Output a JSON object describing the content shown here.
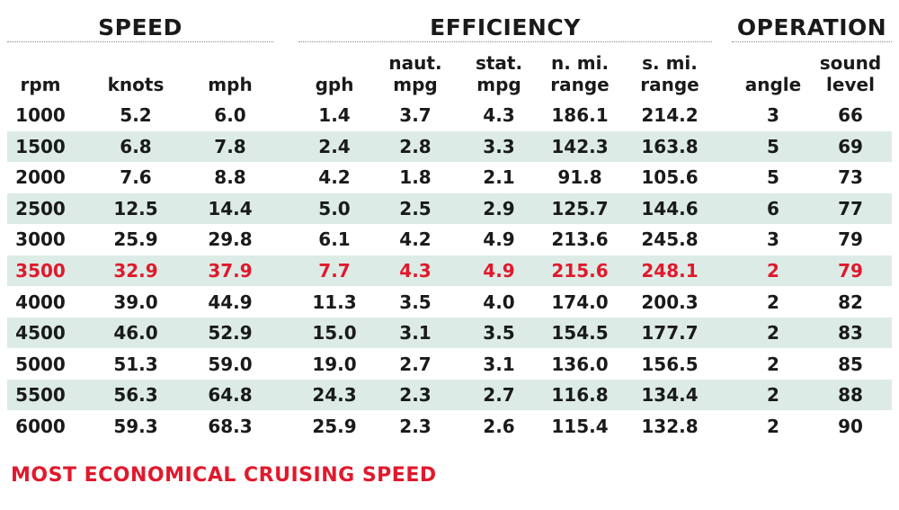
{
  "groups": {
    "speed": "SPEED",
    "efficiency": "EFFICIENCY",
    "operation": "OPERATION"
  },
  "headers": {
    "rpm": [
      "rpm"
    ],
    "knots": [
      "knots"
    ],
    "mph": [
      "mph"
    ],
    "gph": [
      "gph"
    ],
    "naut_mpg": [
      "naut.",
      "mpg"
    ],
    "stat_mpg": [
      "stat.",
      "mpg"
    ],
    "n_mi_range": [
      "n. mi.",
      "range"
    ],
    "s_mi_range": [
      "s. mi.",
      "range"
    ],
    "angle": [
      "angle"
    ],
    "sound_level": [
      "sound",
      "level"
    ]
  },
  "rows": [
    {
      "rpm": "1000",
      "knots": "5.2",
      "mph": "6.0",
      "gph": "1.4",
      "naut_mpg": "3.7",
      "stat_mpg": "4.3",
      "n_mi_range": "186.1",
      "s_mi_range": "214.2",
      "angle": "3",
      "sound_level": "66"
    },
    {
      "rpm": "1500",
      "knots": "6.8",
      "mph": "7.8",
      "gph": "2.4",
      "naut_mpg": "2.8",
      "stat_mpg": "3.3",
      "n_mi_range": "142.3",
      "s_mi_range": "163.8",
      "angle": "5",
      "sound_level": "69"
    },
    {
      "rpm": "2000",
      "knots": "7.6",
      "mph": "8.8",
      "gph": "4.2",
      "naut_mpg": "1.8",
      "stat_mpg": "2.1",
      "n_mi_range": "91.8",
      "s_mi_range": "105.6",
      "angle": "5",
      "sound_level": "73"
    },
    {
      "rpm": "2500",
      "knots": "12.5",
      "mph": "14.4",
      "gph": "5.0",
      "naut_mpg": "2.5",
      "stat_mpg": "2.9",
      "n_mi_range": "125.7",
      "s_mi_range": "144.6",
      "angle": "6",
      "sound_level": "77"
    },
    {
      "rpm": "3000",
      "knots": "25.9",
      "mph": "29.8",
      "gph": "6.1",
      "naut_mpg": "4.2",
      "stat_mpg": "4.9",
      "n_mi_range": "213.6",
      "s_mi_range": "245.8",
      "angle": "3",
      "sound_level": "79"
    },
    {
      "rpm": "3500",
      "knots": "32.9",
      "mph": "37.9",
      "gph": "7.7",
      "naut_mpg": "4.3",
      "stat_mpg": "4.9",
      "n_mi_range": "215.6",
      "s_mi_range": "248.1",
      "angle": "2",
      "sound_level": "79"
    },
    {
      "rpm": "4000",
      "knots": "39.0",
      "mph": "44.9",
      "gph": "11.3",
      "naut_mpg": "3.5",
      "stat_mpg": "4.0",
      "n_mi_range": "174.0",
      "s_mi_range": "200.3",
      "angle": "2",
      "sound_level": "82"
    },
    {
      "rpm": "4500",
      "knots": "46.0",
      "mph": "52.9",
      "gph": "15.0",
      "naut_mpg": "3.1",
      "stat_mpg": "3.5",
      "n_mi_range": "154.5",
      "s_mi_range": "177.7",
      "angle": "2",
      "sound_level": "83"
    },
    {
      "rpm": "5000",
      "knots": "51.3",
      "mph": "59.0",
      "gph": "19.0",
      "naut_mpg": "2.7",
      "stat_mpg": "3.1",
      "n_mi_range": "136.0",
      "s_mi_range": "156.5",
      "angle": "2",
      "sound_level": "85"
    },
    {
      "rpm": "5500",
      "knots": "56.3",
      "mph": "64.8",
      "gph": "24.3",
      "naut_mpg": "2.3",
      "stat_mpg": "2.7",
      "n_mi_range": "116.8",
      "s_mi_range": "134.4",
      "angle": "2",
      "sound_level": "88"
    },
    {
      "rpm": "6000",
      "knots": "59.3",
      "mph": "68.3",
      "gph": "25.9",
      "naut_mpg": "2.3",
      "stat_mpg": "2.6",
      "n_mi_range": "115.4",
      "s_mi_range": "132.8",
      "angle": "2",
      "sound_level": "90"
    }
  ],
  "highlight_row_rpm": "3500",
  "highlight_color": "#e0192c",
  "shade_color": "#dcebe6",
  "footnote": "MOST ECONOMICAL CRUISING SPEED"
}
